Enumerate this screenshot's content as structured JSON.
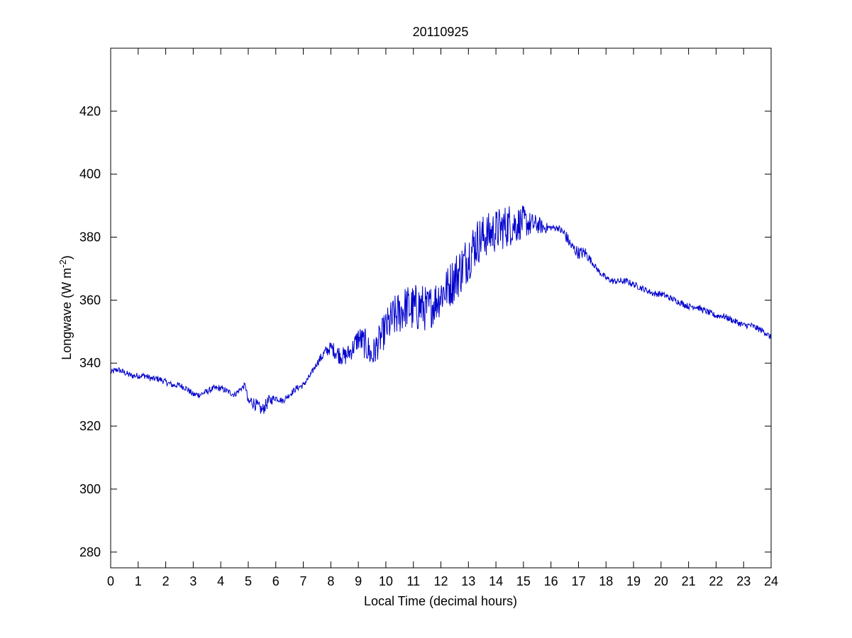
{
  "chart_data": {
    "type": "line",
    "title": "20110925",
    "xlabel": "Local Time (decimal hours)",
    "ylabel": "Longwave (W m",
    "ylabel_superscript": "-2",
    "ylabel_suffix": ")",
    "xlim": [
      0,
      24
    ],
    "ylim": [
      275,
      440
    ],
    "xticks": [
      0,
      1,
      2,
      3,
      4,
      5,
      6,
      7,
      8,
      9,
      10,
      11,
      12,
      13,
      14,
      15,
      16,
      17,
      18,
      19,
      20,
      21,
      22,
      23,
      24
    ],
    "yticks": [
      280,
      300,
      320,
      340,
      360,
      380,
      400,
      420
    ],
    "grid": false,
    "line_color": "#0000cc",
    "series": [
      {
        "x": [
          0.0,
          0.25,
          0.5,
          0.75,
          1.0,
          1.25,
          1.5,
          1.75,
          2.0,
          2.25,
          2.5,
          2.75,
          3.0,
          3.25,
          3.5,
          3.75,
          4.0,
          4.25,
          4.5,
          4.75,
          4.9,
          5.0,
          5.1,
          5.25,
          5.5,
          5.75,
          6.0,
          6.25,
          6.5,
          6.75,
          7.0,
          7.25,
          7.5,
          7.75,
          8.0,
          8.25,
          8.5,
          8.75,
          9.0,
          9.25,
          9.5,
          9.75,
          10.0,
          10.25,
          10.5,
          10.75,
          11.0,
          11.25,
          11.5,
          11.75,
          12.0,
          12.25,
          12.5,
          12.75,
          13.0,
          13.25,
          13.5,
          13.75,
          14.0,
          14.25,
          14.5,
          14.75,
          15.0,
          15.25,
          15.5,
          15.75,
          16.0,
          16.25,
          16.5,
          16.75,
          17.0,
          17.25,
          17.5,
          17.75,
          18.0,
          18.25,
          18.5,
          18.75,
          19.0,
          19.25,
          19.5,
          19.75,
          20.0,
          20.25,
          20.5,
          20.75,
          21.0,
          21.25,
          21.5,
          21.75,
          22.0,
          22.25,
          22.5,
          22.75,
          23.0,
          23.25,
          23.5,
          23.75,
          24.0
        ],
        "y": [
          337,
          338,
          337,
          336,
          336,
          336,
          335,
          335,
          334,
          333,
          333,
          332,
          330,
          330,
          331,
          332,
          332,
          331,
          330,
          332,
          333,
          327,
          328,
          327,
          325,
          328,
          329,
          328,
          330,
          332,
          333,
          336,
          340,
          343,
          345,
          343,
          342,
          344,
          348,
          346,
          342,
          347,
          351,
          354,
          356,
          358,
          357,
          358,
          357,
          359,
          362,
          364,
          367,
          370,
          374,
          378,
          380,
          381,
          382,
          383,
          384,
          384,
          385,
          384,
          384,
          383,
          383,
          383,
          381,
          377,
          375,
          375,
          372,
          369,
          367,
          366,
          366,
          366,
          365,
          364,
          363,
          362,
          362,
          361,
          360,
          359,
          358,
          358,
          357,
          356,
          355,
          355,
          354,
          353,
          352,
          352,
          351,
          350,
          348
        ],
        "noise_amplitude": [
          1,
          1,
          1,
          1,
          1,
          1,
          1,
          1,
          1,
          1,
          1,
          1,
          1,
          1,
          1,
          1,
          1,
          1,
          1,
          1,
          1,
          2,
          2,
          2,
          2,
          2,
          1,
          1,
          1,
          1,
          1,
          1,
          1,
          2,
          2,
          3,
          3,
          3,
          4,
          5,
          5,
          5,
          6,
          7,
          7,
          7,
          8,
          8,
          7,
          7,
          7,
          7,
          8,
          8,
          8,
          8,
          7,
          7,
          7,
          7,
          7,
          6,
          5,
          4,
          3,
          2,
          1,
          1,
          2,
          2,
          2,
          2,
          1,
          1,
          1,
          1,
          1,
          1,
          1,
          1,
          1,
          1,
          1,
          1,
          1,
          1,
          1,
          1,
          1,
          1,
          1,
          1,
          1,
          1,
          1,
          1,
          1,
          1,
          1
        ]
      }
    ]
  }
}
